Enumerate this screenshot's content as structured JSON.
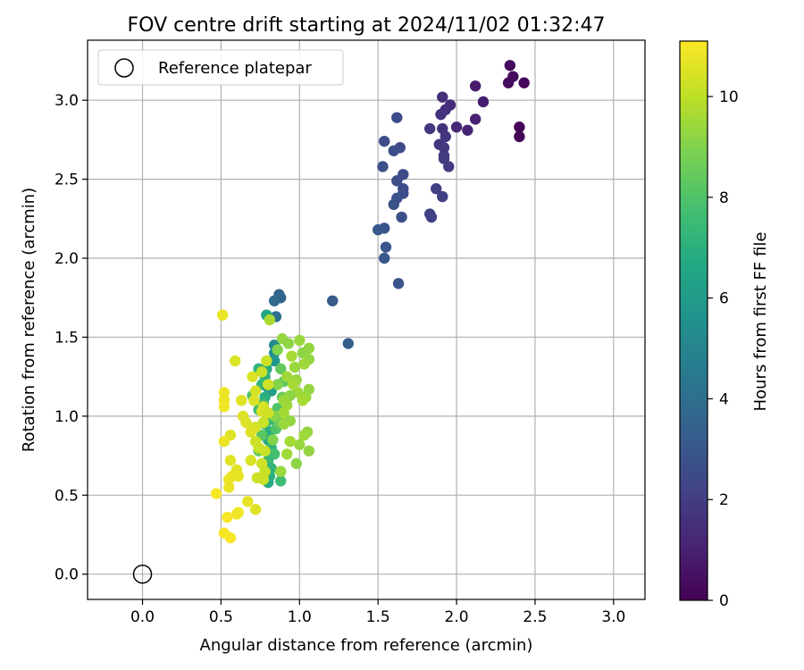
{
  "chart_data": {
    "type": "scatter",
    "title": "FOV centre drift starting at 2024/11/02 01:32:47",
    "xlabel": "Angular distance from reference (arcmin)",
    "ylabel": "Rotation from reference (arcmin)",
    "xlim": [
      -0.35,
      3.2
    ],
    "ylim": [
      -0.16,
      3.38
    ],
    "x_ticks": [
      "0.0",
      "0.5",
      "1.0",
      "1.5",
      "2.0",
      "2.5",
      "3.0"
    ],
    "y_ticks": [
      "0.0",
      "0.5",
      "1.0",
      "1.5",
      "2.0",
      "2.5",
      "3.0"
    ],
    "grid": true,
    "legend": {
      "position": "top-left",
      "entries": [
        {
          "label": "Reference platepar",
          "marker": "open-circle"
        }
      ]
    },
    "reference_point": {
      "x": 0.0,
      "y": 0.0
    },
    "colorbar": {
      "label": "Hours from first FF file",
      "colormap": "viridis",
      "min": 0,
      "max": 11.1,
      "ticks": [
        "0",
        "2",
        "4",
        "6",
        "8",
        "10"
      ]
    },
    "series": [
      {
        "points": [
          {
            "x": 2.34,
            "y": 3.22,
            "c": 0.3
          },
          {
            "x": 2.36,
            "y": 3.15,
            "c": 0.35
          },
          {
            "x": 2.33,
            "y": 3.11,
            "c": 0.4
          },
          {
            "x": 2.43,
            "y": 3.11,
            "c": 0.2
          },
          {
            "x": 2.4,
            "y": 2.83,
            "c": 0.1
          },
          {
            "x": 2.4,
            "y": 2.77,
            "c": 0.05
          },
          {
            "x": 2.12,
            "y": 3.09,
            "c": 0.8
          },
          {
            "x": 2.17,
            "y": 2.99,
            "c": 0.9
          },
          {
            "x": 2.12,
            "y": 2.88,
            "c": 1.0
          },
          {
            "x": 2.07,
            "y": 2.81,
            "c": 1.1
          },
          {
            "x": 2.0,
            "y": 2.83,
            "c": 1.2
          },
          {
            "x": 1.91,
            "y": 3.02,
            "c": 1.5
          },
          {
            "x": 1.96,
            "y": 2.97,
            "c": 1.4
          },
          {
            "x": 1.93,
            "y": 2.94,
            "c": 1.5
          },
          {
            "x": 1.9,
            "y": 2.91,
            "c": 1.6
          },
          {
            "x": 1.91,
            "y": 2.82,
            "c": 1.6
          },
          {
            "x": 1.93,
            "y": 2.77,
            "c": 1.7
          },
          {
            "x": 1.89,
            "y": 2.72,
            "c": 1.7
          },
          {
            "x": 1.92,
            "y": 2.7,
            "c": 1.8
          },
          {
            "x": 1.92,
            "y": 2.65,
            "c": 1.8
          },
          {
            "x": 1.92,
            "y": 2.63,
            "c": 1.9
          },
          {
            "x": 1.95,
            "y": 2.58,
            "c": 1.9
          },
          {
            "x": 1.83,
            "y": 2.82,
            "c": 1.8
          },
          {
            "x": 1.87,
            "y": 2.44,
            "c": 2.0
          },
          {
            "x": 1.91,
            "y": 2.39,
            "c": 2.0
          },
          {
            "x": 1.83,
            "y": 2.28,
            "c": 2.1
          },
          {
            "x": 1.84,
            "y": 2.26,
            "c": 2.1
          },
          {
            "x": 1.62,
            "y": 2.89,
            "c": 2.5
          },
          {
            "x": 1.64,
            "y": 2.7,
            "c": 2.5
          },
          {
            "x": 1.6,
            "y": 2.68,
            "c": 2.6
          },
          {
            "x": 1.54,
            "y": 2.74,
            "c": 2.6
          },
          {
            "x": 1.53,
            "y": 2.58,
            "c": 2.7
          },
          {
            "x": 1.66,
            "y": 2.53,
            "c": 2.5
          },
          {
            "x": 1.62,
            "y": 2.49,
            "c": 2.6
          },
          {
            "x": 1.66,
            "y": 2.44,
            "c": 2.5
          },
          {
            "x": 1.66,
            "y": 2.41,
            "c": 2.6
          },
          {
            "x": 1.62,
            "y": 2.38,
            "c": 2.7
          },
          {
            "x": 1.6,
            "y": 2.34,
            "c": 2.8
          },
          {
            "x": 1.65,
            "y": 2.26,
            "c": 2.7
          },
          {
            "x": 1.5,
            "y": 2.18,
            "c": 3.0
          },
          {
            "x": 1.54,
            "y": 2.19,
            "c": 2.9
          },
          {
            "x": 1.55,
            "y": 2.07,
            "c": 2.9
          },
          {
            "x": 1.54,
            "y": 2.0,
            "c": 3.0
          },
          {
            "x": 1.63,
            "y": 1.84,
            "c": 2.9
          },
          {
            "x": 1.21,
            "y": 1.73,
            "c": 3.2
          },
          {
            "x": 1.31,
            "y": 1.46,
            "c": 3.3
          },
          {
            "x": 0.87,
            "y": 1.77,
            "c": 3.5
          },
          {
            "x": 0.88,
            "y": 1.75,
            "c": 3.6
          },
          {
            "x": 0.84,
            "y": 1.73,
            "c": 3.8
          },
          {
            "x": 0.85,
            "y": 1.63,
            "c": 4.0
          },
          {
            "x": 0.79,
            "y": 1.64,
            "c": 6.5
          },
          {
            "x": 0.81,
            "y": 1.61,
            "c": 9.7
          },
          {
            "x": 0.84,
            "y": 1.45,
            "c": 5.2
          },
          {
            "x": 0.84,
            "y": 1.4,
            "c": 5.5
          },
          {
            "x": 0.84,
            "y": 1.35,
            "c": 5.8
          },
          {
            "x": 0.74,
            "y": 1.3,
            "c": 7.2
          },
          {
            "x": 0.79,
            "y": 1.3,
            "c": 6.8
          },
          {
            "x": 0.78,
            "y": 1.25,
            "c": 7.0
          },
          {
            "x": 0.76,
            "y": 1.2,
            "c": 7.3
          },
          {
            "x": 0.8,
            "y": 1.18,
            "c": 6.0
          },
          {
            "x": 0.82,
            "y": 1.16,
            "c": 6.2
          },
          {
            "x": 0.78,
            "y": 1.12,
            "c": 7.0
          },
          {
            "x": 0.77,
            "y": 1.08,
            "c": 7.4
          },
          {
            "x": 0.74,
            "y": 1.04,
            "c": 7.6
          },
          {
            "x": 0.8,
            "y": 1.0,
            "c": 6.9
          },
          {
            "x": 0.82,
            "y": 0.98,
            "c": 7.2
          },
          {
            "x": 0.78,
            "y": 0.95,
            "c": 7.5
          },
          {
            "x": 0.81,
            "y": 0.9,
            "c": 7.0
          },
          {
            "x": 0.8,
            "y": 0.85,
            "c": 6.8
          },
          {
            "x": 0.82,
            "y": 0.8,
            "c": 7.2
          },
          {
            "x": 0.84,
            "y": 0.76,
            "c": 7.8
          },
          {
            "x": 0.8,
            "y": 0.72,
            "c": 7.5
          },
          {
            "x": 0.82,
            "y": 0.67,
            "c": 7.2
          },
          {
            "x": 0.81,
            "y": 0.62,
            "c": 7.0
          },
          {
            "x": 0.8,
            "y": 0.58,
            "c": 6.8
          },
          {
            "x": 0.88,
            "y": 0.59,
            "c": 7.6
          },
          {
            "x": 0.88,
            "y": 0.65,
            "c": 8.0
          },
          {
            "x": 0.85,
            "y": 0.92,
            "c": 8.0
          },
          {
            "x": 0.76,
            "y": 0.88,
            "c": 8.2
          },
          {
            "x": 0.86,
            "y": 1.05,
            "c": 8.0
          },
          {
            "x": 0.89,
            "y": 1.12,
            "c": 8.5
          },
          {
            "x": 0.9,
            "y": 1.22,
            "c": 8.3
          },
          {
            "x": 0.88,
            "y": 1.3,
            "c": 8.4
          },
          {
            "x": 0.74,
            "y": 0.78,
            "c": 8.5
          },
          {
            "x": 0.7,
            "y": 1.13,
            "c": 8.0
          },
          {
            "x": 0.87,
            "y": 0.96,
            "c": 8.5
          },
          {
            "x": 0.89,
            "y": 1.49,
            "c": 9.3
          },
          {
            "x": 0.93,
            "y": 1.46,
            "c": 9.2
          },
          {
            "x": 1.0,
            "y": 1.48,
            "c": 9.4
          },
          {
            "x": 1.06,
            "y": 1.43,
            "c": 9.3
          },
          {
            "x": 1.02,
            "y": 1.4,
            "c": 9.2
          },
          {
            "x": 1.06,
            "y": 1.36,
            "c": 9.3
          },
          {
            "x": 1.03,
            "y": 1.33,
            "c": 9.5
          },
          {
            "x": 0.95,
            "y": 1.38,
            "c": 9.6
          },
          {
            "x": 0.97,
            "y": 1.31,
            "c": 9.4
          },
          {
            "x": 0.92,
            "y": 1.25,
            "c": 9.5
          },
          {
            "x": 0.98,
            "y": 1.23,
            "c": 9.4
          },
          {
            "x": 0.96,
            "y": 1.2,
            "c": 9.6
          },
          {
            "x": 0.99,
            "y": 1.15,
            "c": 9.5
          },
          {
            "x": 1.06,
            "y": 1.17,
            "c": 9.3
          },
          {
            "x": 1.04,
            "y": 1.12,
            "c": 9.4
          },
          {
            "x": 1.02,
            "y": 1.1,
            "c": 9.6
          },
          {
            "x": 0.94,
            "y": 1.13,
            "c": 9.2
          },
          {
            "x": 0.9,
            "y": 1.1,
            "c": 9.4
          },
          {
            "x": 0.92,
            "y": 1.07,
            "c": 9.5
          },
          {
            "x": 0.9,
            "y": 1.02,
            "c": 9.6
          },
          {
            "x": 0.94,
            "y": 0.97,
            "c": 9.3
          },
          {
            "x": 0.9,
            "y": 0.95,
            "c": 9.4
          },
          {
            "x": 1.05,
            "y": 0.9,
            "c": 9.3
          },
          {
            "x": 1.03,
            "y": 0.88,
            "c": 9.5
          },
          {
            "x": 1.0,
            "y": 0.82,
            "c": 9.4
          },
          {
            "x": 0.94,
            "y": 0.84,
            "c": 9.6
          },
          {
            "x": 1.06,
            "y": 0.78,
            "c": 9.3
          },
          {
            "x": 0.92,
            "y": 0.76,
            "c": 9.5
          },
          {
            "x": 0.98,
            "y": 0.7,
            "c": 9.2
          },
          {
            "x": 0.88,
            "y": 0.65,
            "c": 9.4
          },
          {
            "x": 0.86,
            "y": 1.42,
            "c": 9.0
          },
          {
            "x": 0.86,
            "y": 1.2,
            "c": 9.0
          },
          {
            "x": 0.84,
            "y": 1.0,
            "c": 9.1
          },
          {
            "x": 0.83,
            "y": 0.85,
            "c": 9.0
          },
          {
            "x": 0.51,
            "y": 1.64,
            "c": 10.8
          },
          {
            "x": 0.59,
            "y": 1.35,
            "c": 10.5
          },
          {
            "x": 0.79,
            "y": 1.35,
            "c": 10.2
          },
          {
            "x": 0.7,
            "y": 1.25,
            "c": 10.5
          },
          {
            "x": 0.76,
            "y": 1.28,
            "c": 10.2
          },
          {
            "x": 0.8,
            "y": 1.2,
            "c": 10.3
          },
          {
            "x": 0.72,
            "y": 1.16,
            "c": 10.4
          },
          {
            "x": 0.52,
            "y": 1.15,
            "c": 10.8
          },
          {
            "x": 0.52,
            "y": 1.1,
            "c": 10.8
          },
          {
            "x": 0.52,
            "y": 1.06,
            "c": 10.9
          },
          {
            "x": 0.63,
            "y": 1.1,
            "c": 10.6
          },
          {
            "x": 0.71,
            "y": 1.1,
            "c": 10.5
          },
          {
            "x": 0.77,
            "y": 1.06,
            "c": 10.4
          },
          {
            "x": 0.76,
            "y": 1.03,
            "c": 10.4
          },
          {
            "x": 0.8,
            "y": 1.02,
            "c": 10.3
          },
          {
            "x": 0.77,
            "y": 0.96,
            "c": 10.2
          },
          {
            "x": 0.72,
            "y": 0.93,
            "c": 10.4
          },
          {
            "x": 0.69,
            "y": 0.9,
            "c": 10.6
          },
          {
            "x": 0.56,
            "y": 0.88,
            "c": 10.6
          },
          {
            "x": 0.52,
            "y": 0.84,
            "c": 10.8
          },
          {
            "x": 0.72,
            "y": 0.84,
            "c": 10.3
          },
          {
            "x": 0.74,
            "y": 0.8,
            "c": 10.2
          },
          {
            "x": 0.78,
            "y": 0.78,
            "c": 10.2
          },
          {
            "x": 0.69,
            "y": 0.72,
            "c": 10.5
          },
          {
            "x": 0.56,
            "y": 0.72,
            "c": 10.6
          },
          {
            "x": 0.6,
            "y": 0.66,
            "c": 10.6
          },
          {
            "x": 0.76,
            "y": 0.7,
            "c": 10.3
          },
          {
            "x": 0.78,
            "y": 0.65,
            "c": 10.2
          },
          {
            "x": 0.61,
            "y": 0.62,
            "c": 10.7
          },
          {
            "x": 0.57,
            "y": 0.62,
            "c": 10.7
          },
          {
            "x": 0.55,
            "y": 0.6,
            "c": 10.8
          },
          {
            "x": 0.55,
            "y": 0.55,
            "c": 10.8
          },
          {
            "x": 0.73,
            "y": 0.61,
            "c": 10.3
          },
          {
            "x": 0.77,
            "y": 0.6,
            "c": 10.2
          },
          {
            "x": 0.47,
            "y": 0.51,
            "c": 11.0
          },
          {
            "x": 0.67,
            "y": 0.46,
            "c": 10.7
          },
          {
            "x": 0.72,
            "y": 0.41,
            "c": 10.6
          },
          {
            "x": 0.61,
            "y": 0.39,
            "c": 10.9
          },
          {
            "x": 0.6,
            "y": 0.38,
            "c": 10.9
          },
          {
            "x": 0.54,
            "y": 0.36,
            "c": 11.0
          },
          {
            "x": 0.52,
            "y": 0.26,
            "c": 11.0
          },
          {
            "x": 0.56,
            "y": 0.23,
            "c": 11.0
          },
          {
            "x": 0.66,
            "y": 0.96,
            "c": 10.6
          },
          {
            "x": 0.64,
            "y": 1.0,
            "c": 10.5
          }
        ]
      }
    ]
  }
}
